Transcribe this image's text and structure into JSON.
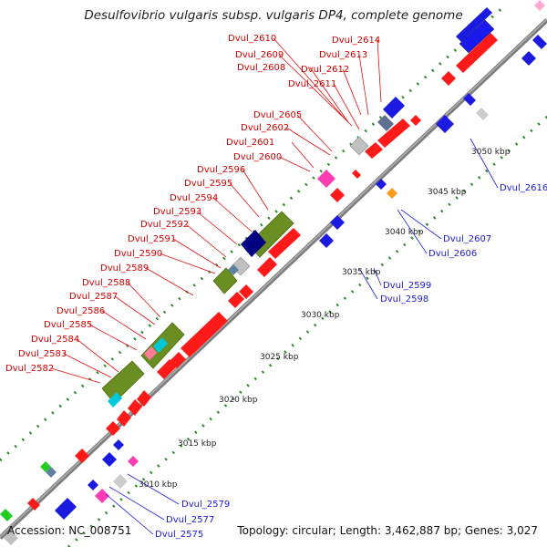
{
  "title": "Desulfovibrio vulgaris subsp. vulgaris DP4, complete genome",
  "footer": {
    "accession": "Accession: NC_008751",
    "summary": "Topology: circular; Length: 3,462,887 bp; Genes: 3,027"
  },
  "colors": {
    "backbone": "#8a8a8a",
    "gc_dots": "#2d8a2d",
    "forward_label": "#d40000",
    "reverse_label": "#1a1ad4",
    "forward_cds": "#ff1a1a",
    "reverse_cds": "#1a1ae0",
    "olive_feature": "#6b8e23",
    "cyan_feature": "#00c8d8",
    "pink_feature": "#ff3cb4",
    "navy_feature": "#000080",
    "grey_feature": "#c0c0c0",
    "slate_feature": "#6080a0",
    "orange_feature": "#ff9a1a",
    "green_feature": "#22cc22"
  },
  "scale_ticks": [
    "3010 kbp",
    "3015 kbp",
    "3020 kbp",
    "3025 kbp",
    "3030 kbp",
    "3035 kbp",
    "3040 kbp",
    "3045 kbp",
    "3050 kbp"
  ],
  "forward_genes": [
    "Dvul_2582",
    "Dvul_2583",
    "Dvul_2584",
    "Dvul_2585",
    "Dvul_2586",
    "Dvul_2587",
    "Dvul_2588",
    "Dvul_2589",
    "Dvul_2590",
    "Dvul_2591",
    "Dvul_2592",
    "Dvul_2593",
    "Dvul_2594",
    "Dvul_2595",
    "Dvul_2596",
    "Dvul_2600",
    "Dvul_2601",
    "Dvul_2602",
    "Dvul_2605",
    "Dvul_2611",
    "Dvul_2608",
    "Dvul_2612",
    "Dvul_2609",
    "Dvul_2613",
    "Dvul_2610",
    "Dvul_2614"
  ],
  "reverse_genes": [
    "Dvul_2575",
    "Dvul_2577",
    "Dvul_2579",
    "Dvul_2598",
    "Dvul_2599",
    "Dvul_2606",
    "Dvul_2607",
    "Dvul_2616"
  ]
}
